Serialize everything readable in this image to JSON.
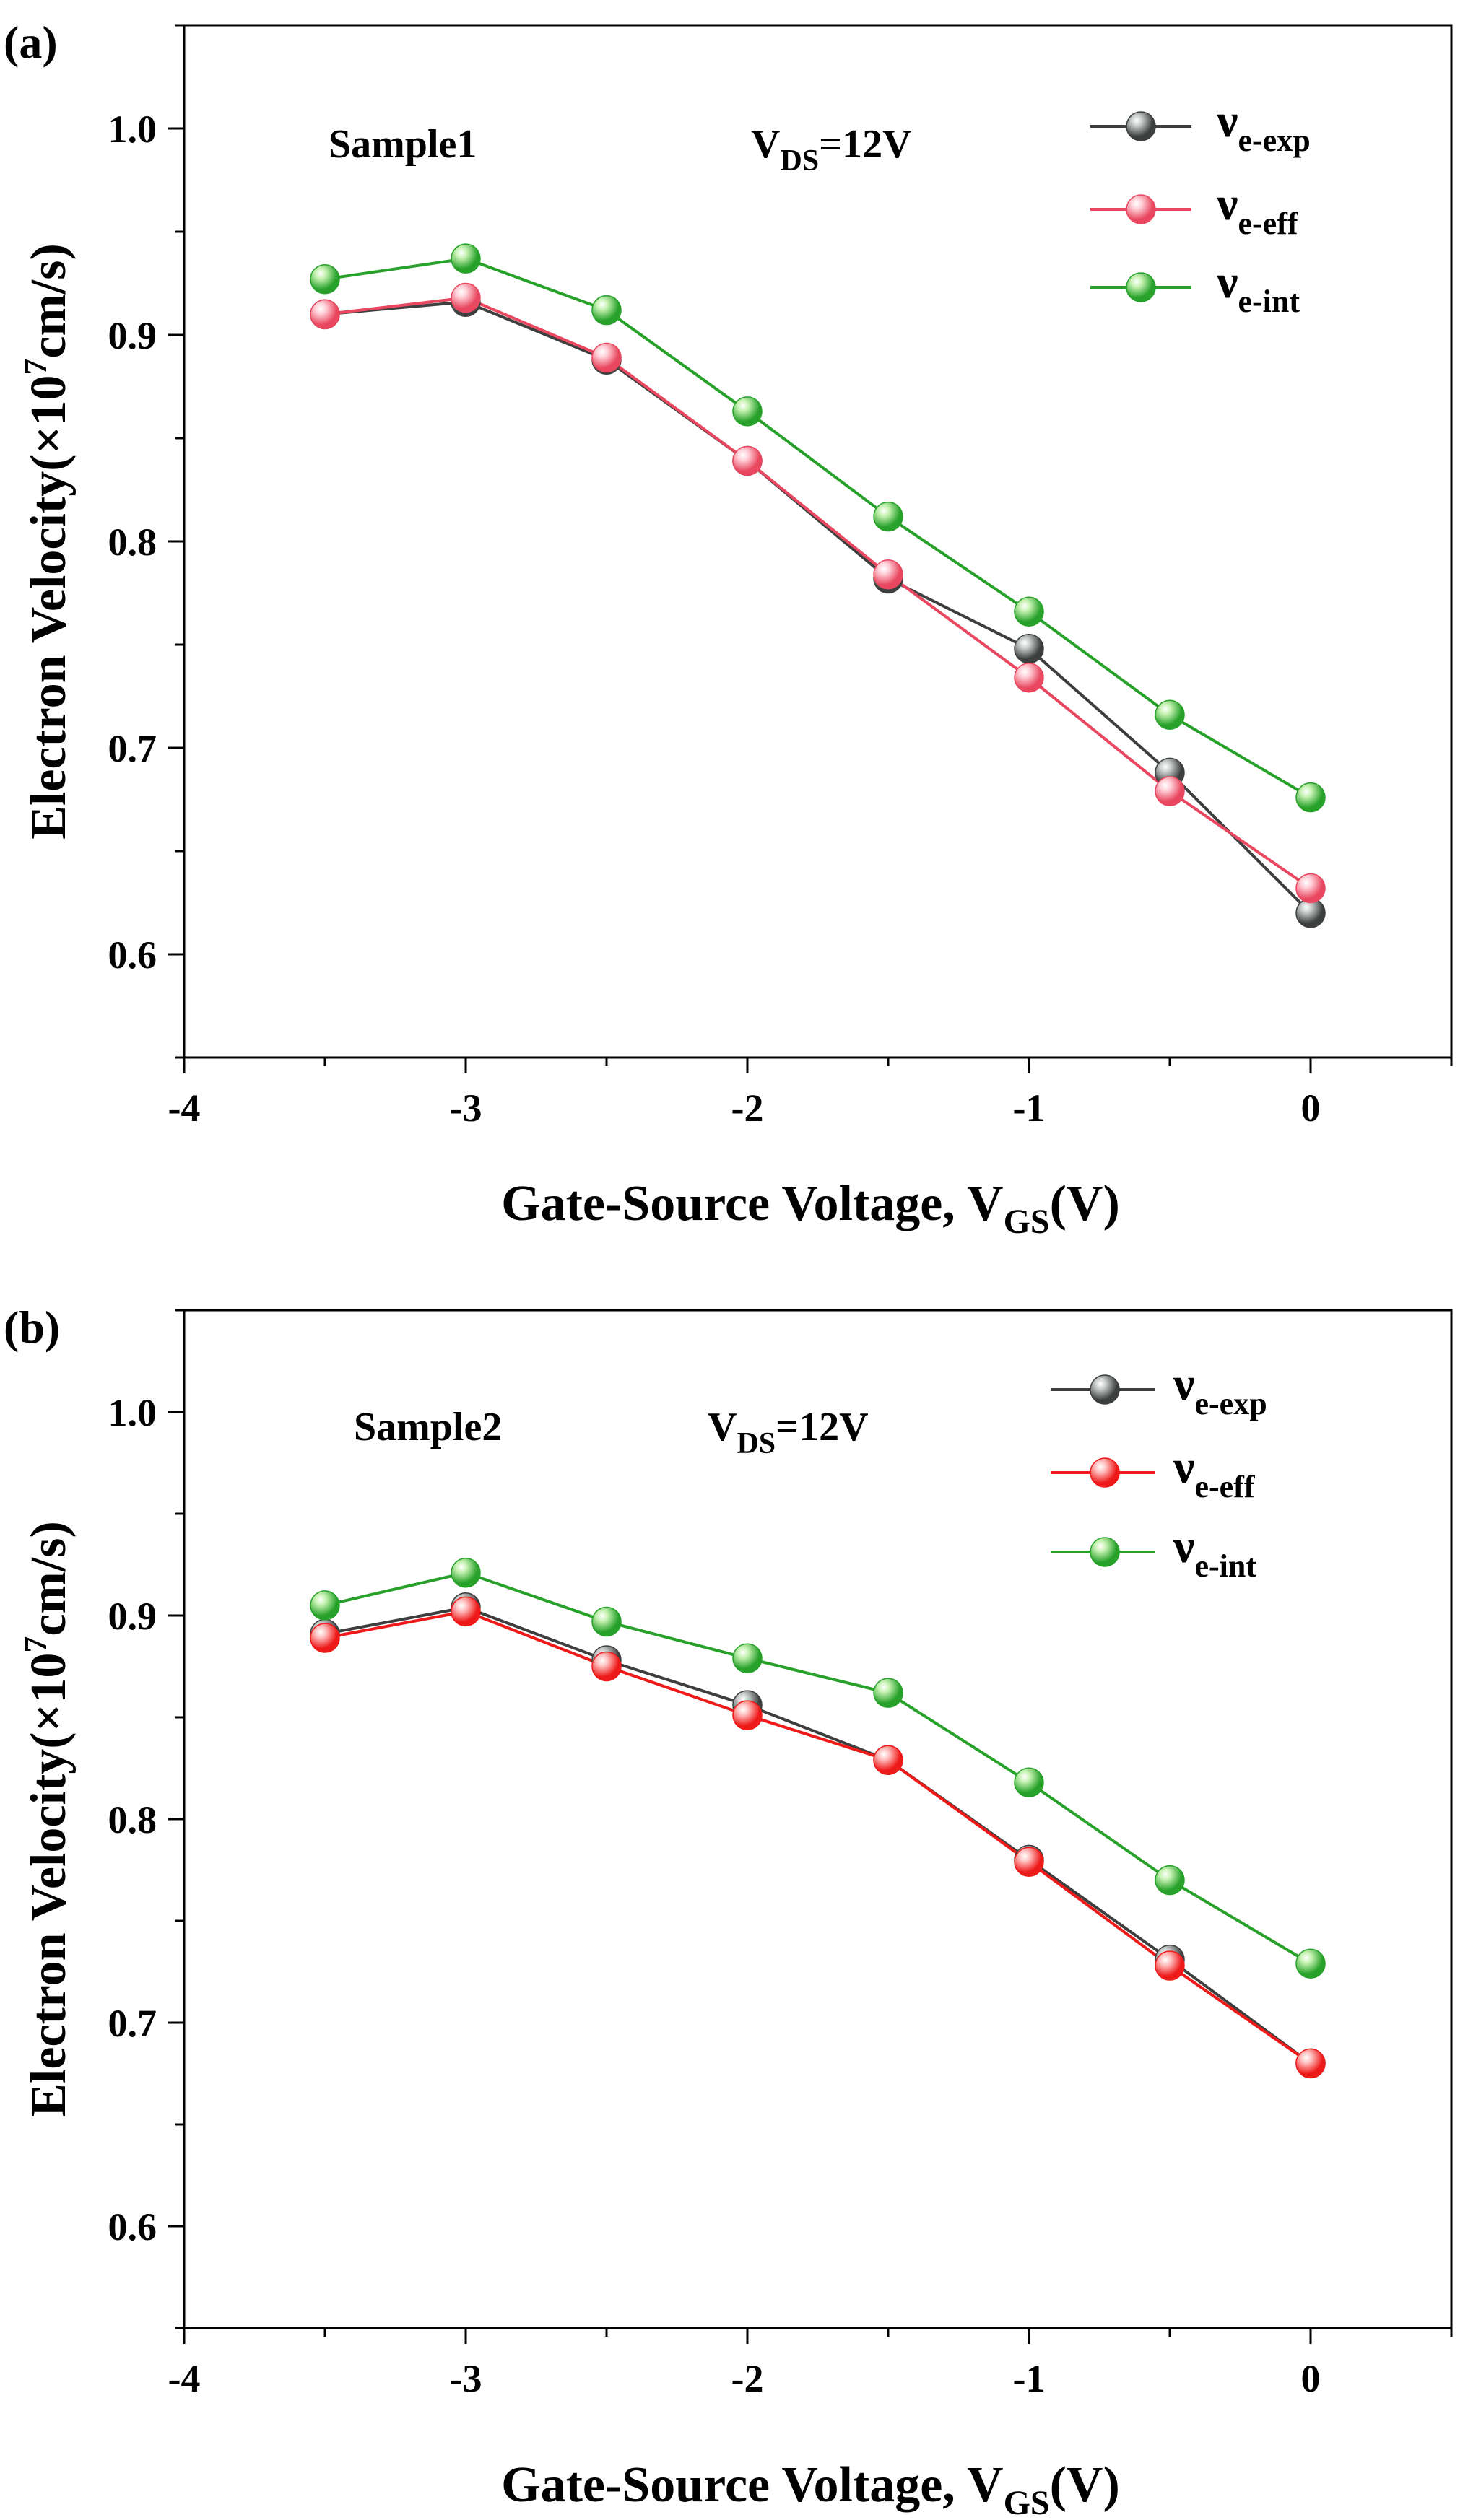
{
  "chart_data": [
    {
      "type": "line",
      "panel_label": "(a)",
      "sample_label": "Sample1",
      "vds_label": {
        "main": "V",
        "sub": "DS",
        "rest": "=12V"
      },
      "xlabel": {
        "main": "Gate-Source Voltage, V",
        "sub": "GS",
        "rest": "(V)"
      },
      "ylabel": {
        "main": "Electron Velocity(×10",
        "sup": "7",
        "rest": "cm/s)"
      },
      "xlim": [
        -4,
        0.5
      ],
      "ylim": [
        0.55,
        1.05
      ],
      "xticks": [
        "-4",
        "-3",
        "-2",
        "-1",
        "0"
      ],
      "yticks": [
        "0.6",
        "0.7",
        "0.8",
        "0.9",
        "1.0"
      ],
      "x": [
        -3.5,
        -3.0,
        -2.5,
        -2.0,
        -1.5,
        -1.0,
        -0.5,
        0.0
      ],
      "series": [
        {
          "name": "ν",
          "sub": "e-exp",
          "color": "#3d3f3f",
          "highlight": "#c9cccc",
          "values": [
            0.91,
            0.916,
            0.888,
            0.839,
            0.782,
            0.748,
            0.688,
            0.62
          ]
        },
        {
          "name": "ν",
          "sub": "e-eff",
          "color": "#e8475f",
          "highlight": "#ffd0d8",
          "values": [
            0.91,
            0.918,
            0.889,
            0.839,
            0.784,
            0.734,
            0.679,
            0.632
          ]
        },
        {
          "name": "ν",
          "sub": "e-int",
          "color": "#27a12a",
          "highlight": "#c6f2b2",
          "values": [
            0.927,
            0.937,
            0.912,
            0.863,
            0.812,
            0.766,
            0.716,
            0.676
          ]
        }
      ]
    },
    {
      "type": "line",
      "panel_label": "(b)",
      "sample_label": "Sample2",
      "vds_label": {
        "main": "V",
        "sub": "DS",
        "rest": "=12V"
      },
      "xlabel": {
        "main": "Gate-Source Voltage, V",
        "sub": "GS",
        "rest": "(V)"
      },
      "ylabel": {
        "main": "Electron Velocity(×10",
        "sup": "7",
        "rest": "cm/s)"
      },
      "xlim": [
        -4,
        0.5
      ],
      "ylim": [
        0.55,
        1.05
      ],
      "xticks": [
        "-4",
        "-3",
        "-2",
        "-1",
        "0"
      ],
      "yticks": [
        "0.6",
        "0.7",
        "0.8",
        "0.9",
        "1.0"
      ],
      "x": [
        -3.5,
        -3.0,
        -2.5,
        -2.0,
        -1.5,
        -1.0,
        -0.5,
        0.0
      ],
      "series": [
        {
          "name": "ν",
          "sub": "e-exp",
          "color": "#3d3f3f",
          "highlight": "#c9cccc",
          "values": [
            0.891,
            0.904,
            0.878,
            0.856,
            0.829,
            0.78,
            0.731,
            0.68
          ]
        },
        {
          "name": "ν",
          "sub": "e-eff",
          "color": "#ee1a1a",
          "highlight": "#ffc2c2",
          "values": [
            0.889,
            0.902,
            0.875,
            0.851,
            0.829,
            0.779,
            0.728,
            0.68
          ]
        },
        {
          "name": "ν",
          "sub": "e-int",
          "color": "#27a12a",
          "highlight": "#c6f2b2",
          "values": [
            0.905,
            0.921,
            0.897,
            0.879,
            0.862,
            0.818,
            0.77,
            0.729
          ]
        }
      ]
    }
  ]
}
